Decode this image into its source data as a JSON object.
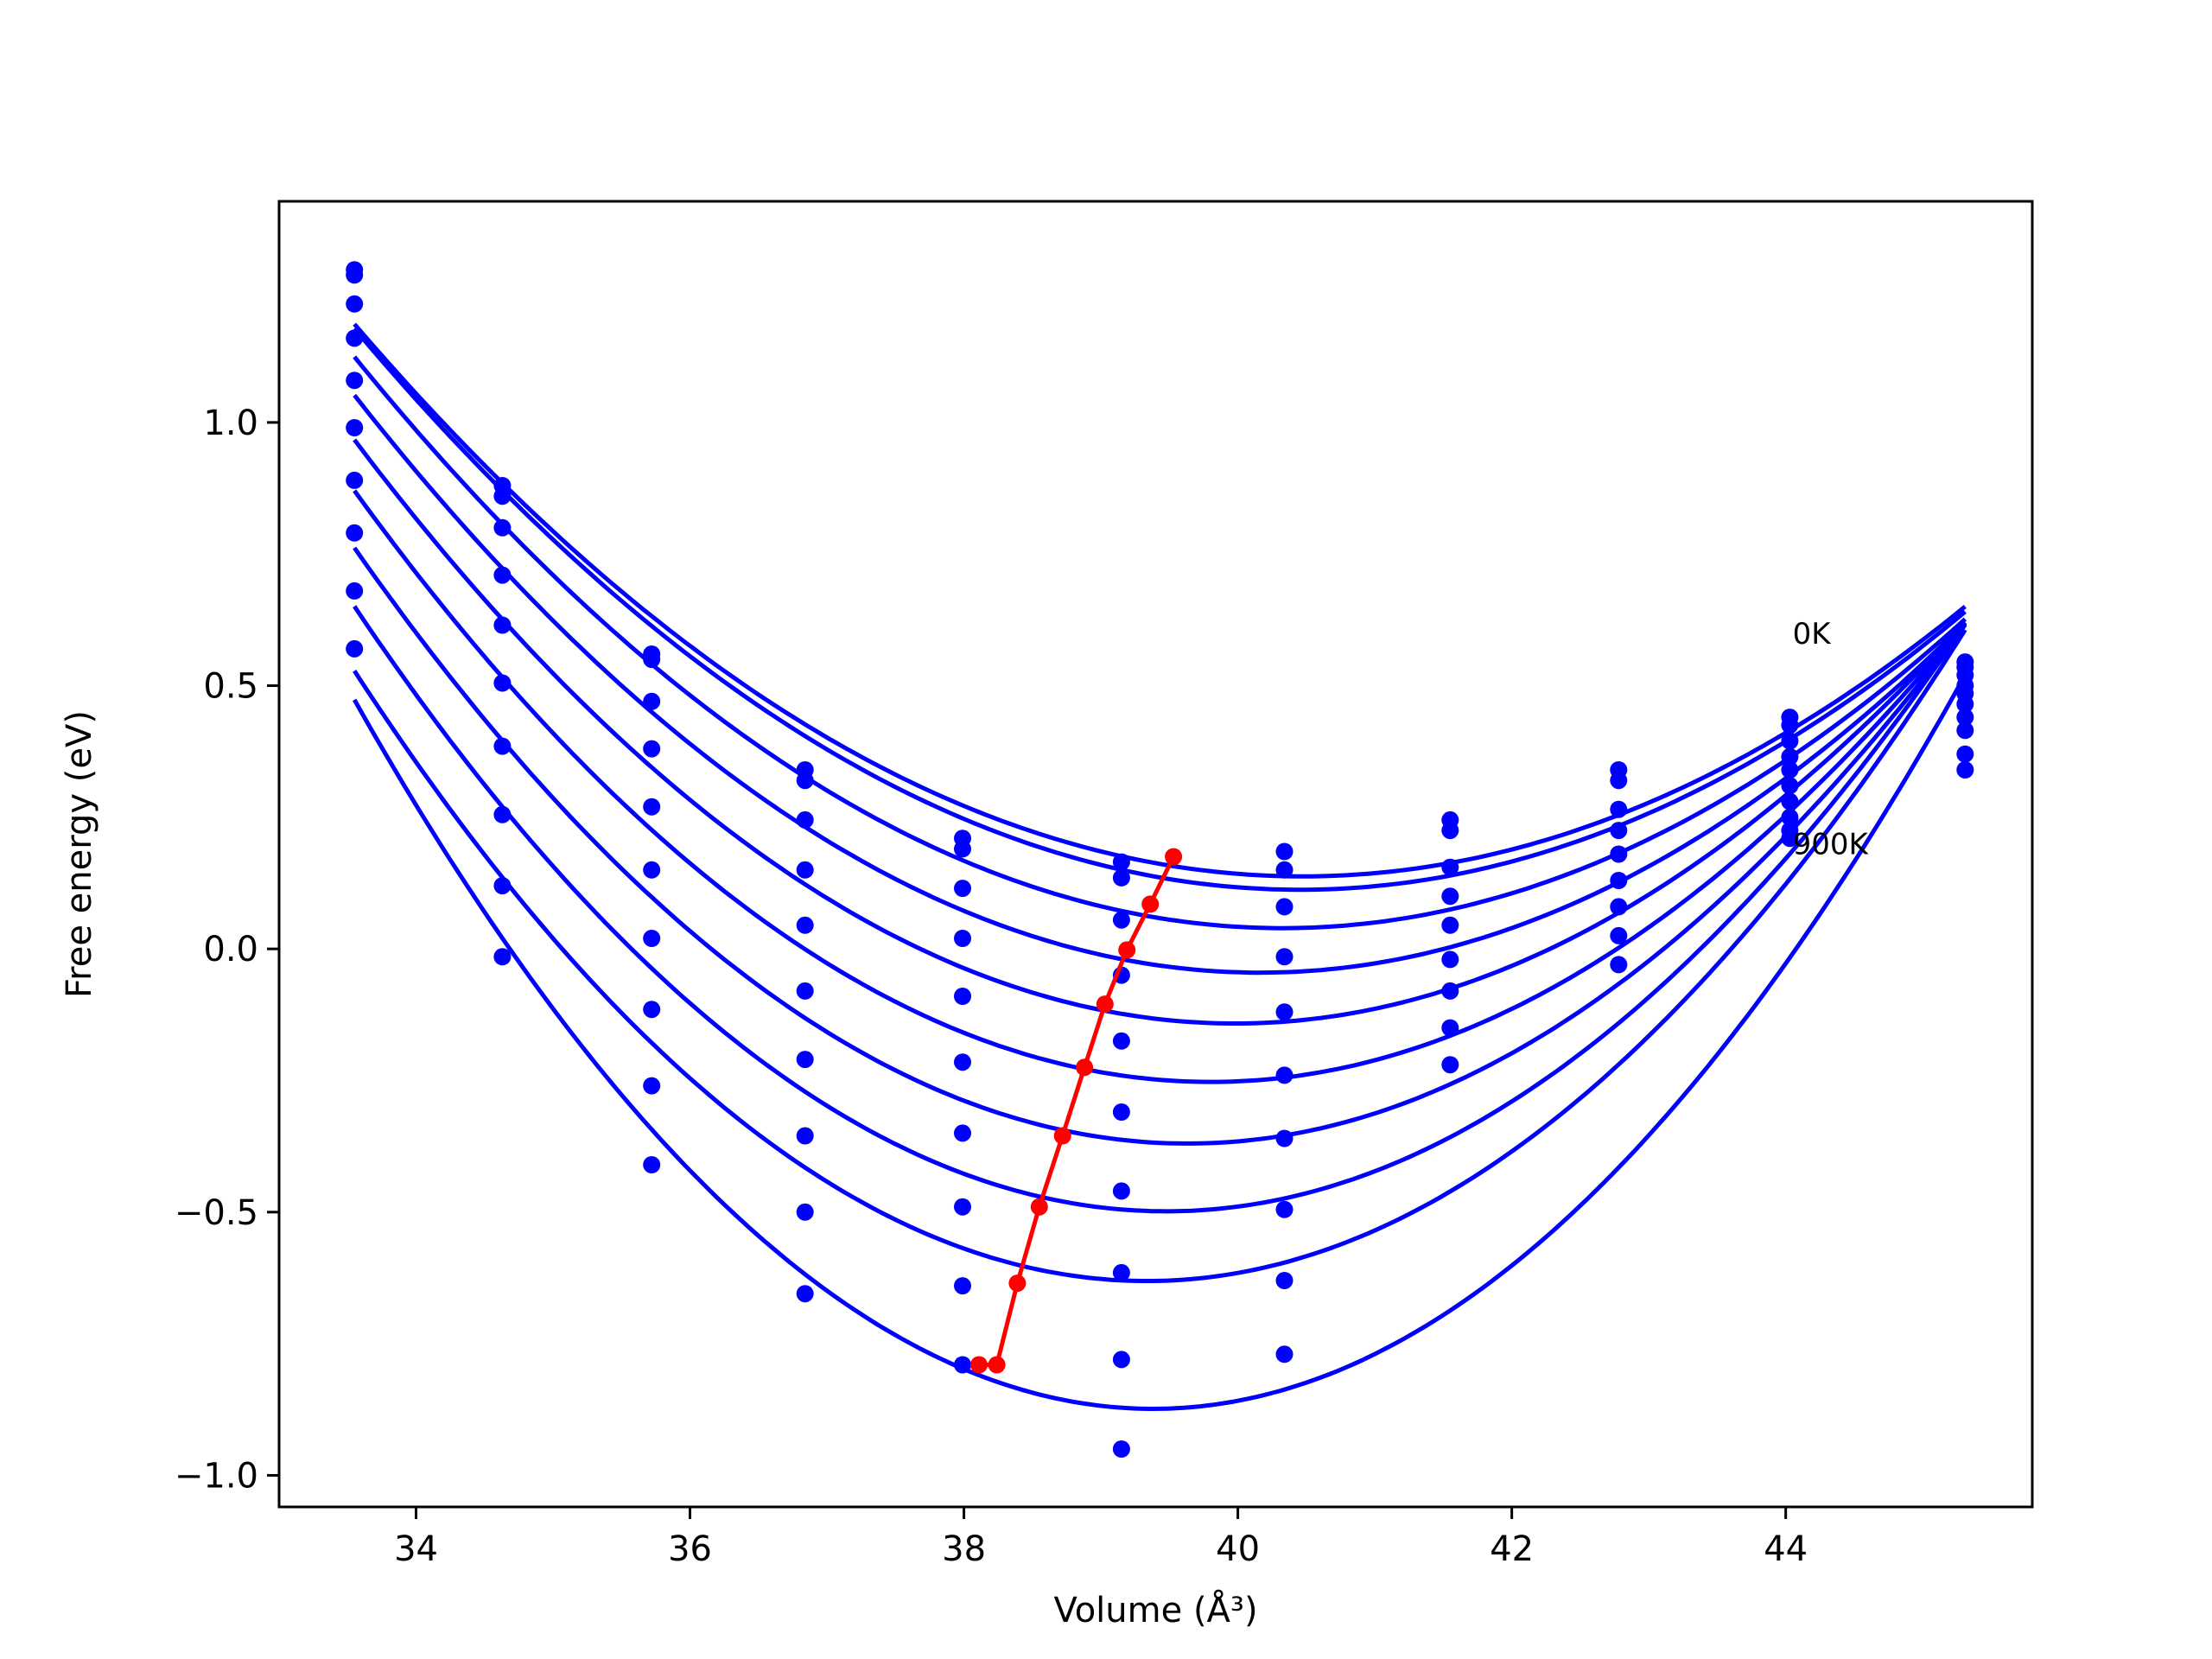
{
  "chart_data": {
    "type": "line",
    "title": "",
    "xlabel": "Volume (Å³)",
    "ylabel": "Free energy (eV)",
    "xlim": [
      33.0,
      45.8
    ],
    "ylim": [
      -1.06,
      1.42
    ],
    "xticks": [
      34,
      36,
      38,
      40,
      42,
      44
    ],
    "xtick_labels": [
      "34",
      "36",
      "38",
      "40",
      "42",
      "44"
    ],
    "yticks": [
      -1.0,
      -0.5,
      0.0,
      0.5,
      1.0
    ],
    "ytick_labels": [
      "−1.0",
      "−0.5",
      "0.0",
      "0.5",
      "1.0"
    ],
    "grid": false,
    "volumes": [
      33.55,
      34.63,
      35.72,
      36.84,
      37.99,
      39.15,
      40.34,
      41.55,
      42.78,
      44.03,
      45.31
    ],
    "series": [
      {
        "values": [
          1.29,
          0.88,
          0.56,
          0.34,
          0.21,
          0.165,
          0.185,
          0.245,
          0.34,
          0.44,
          0.545
        ]
      },
      {
        "values": [
          1.28,
          0.86,
          0.55,
          0.32,
          0.19,
          0.135,
          0.15,
          0.225,
          0.32,
          0.425,
          0.535
        ]
      },
      {
        "values": [
          1.225,
          0.8,
          0.47,
          0.245,
          0.115,
          0.055,
          0.08,
          0.155,
          0.265,
          0.395,
          0.52
        ]
      },
      {
        "values": [
          1.16,
          0.71,
          0.38,
          0.15,
          0.02,
          -0.05,
          -0.015,
          0.1,
          0.225,
          0.365,
          0.5
        ]
      },
      {
        "values": [
          1.08,
          0.615,
          0.27,
          0.045,
          -0.09,
          -0.175,
          -0.12,
          0.045,
          0.18,
          0.34,
          0.485
        ]
      },
      {
        "values": [
          0.99,
          0.505,
          0.15,
          -0.08,
          -0.215,
          -0.31,
          -0.24,
          -0.02,
          0.13,
          0.31,
          0.465
        ]
      },
      {
        "values": [
          0.89,
          0.385,
          0.02,
          -0.21,
          -0.35,
          -0.46,
          -0.36,
          -0.08,
          0.08,
          0.28,
          0.44
        ]
      },
      {
        "values": [
          0.79,
          0.255,
          -0.115,
          -0.355,
          -0.49,
          -0.615,
          -0.495,
          -0.15,
          0.025,
          0.25,
          0.415
        ]
      },
      {
        "values": [
          0.68,
          0.12,
          -0.26,
          -0.5,
          -0.64,
          -0.78,
          -0.63,
          -0.22,
          -0.03,
          0.225,
          0.37
        ]
      },
      {
        "values": [
          0.57,
          -0.015,
          -0.41,
          -0.655,
          -0.79,
          -0.95,
          -0.77,
          null,
          null,
          0.21,
          0.34
        ]
      }
    ],
    "minima_curve": {
      "x": [
        39.53,
        39.36,
        39.19,
        39.03,
        38.88,
        38.72,
        38.55,
        38.39,
        38.24,
        38.11
      ],
      "y": [
        0.175,
        0.085,
        -0.002,
        -0.105,
        -0.225,
        -0.355,
        -0.49,
        -0.635,
        -0.79,
        -0.79
      ]
    },
    "colors": {
      "curves": "#0000ff",
      "points": "#0000ff",
      "minima": "#ff0000"
    },
    "annotations": [
      {
        "text": "0K",
        "x": 44.05,
        "y": 0.58
      },
      {
        "text": "900K",
        "x": 44.05,
        "y": 0.18
      }
    ]
  }
}
